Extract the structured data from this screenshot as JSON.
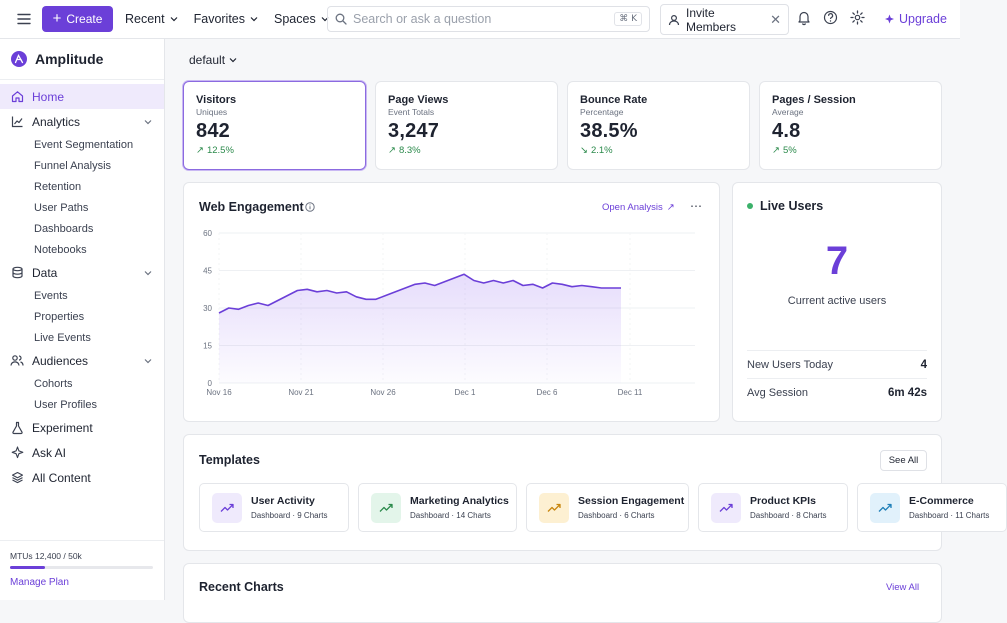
{
  "topbar": {
    "create_label": "Create",
    "menus": [
      "Recent",
      "Favorites",
      "Spaces"
    ],
    "search_placeholder": "Search or ask a question",
    "search_shortcut": "⌘ K",
    "invite_label": "Invite Members",
    "upgrade_label": "Upgrade"
  },
  "sidebar": {
    "brand": "Amplitude",
    "items": {
      "home": "Home",
      "analytics": "Analytics",
      "data": "Data",
      "audiences": "Audiences",
      "experiment": "Experiment",
      "ask_ai": "Ask AI",
      "all_content": "All Content"
    },
    "analytics_sub": [
      "Event Segmentation",
      "Funnel Analysis",
      "Retention",
      "User Paths",
      "Dashboards",
      "Notebooks"
    ],
    "data_sub": [
      "Events",
      "Properties",
      "Live Events"
    ],
    "audiences_sub": [
      "Cohorts",
      "User Profiles"
    ],
    "mtu_text": "MTUs 12,400 / 50k",
    "mtu_used_fraction": 0.248,
    "manage_plan": "Manage Plan"
  },
  "main": {
    "scope_label": "default",
    "kpis": [
      {
        "title": "Visitors",
        "subtitle": "Uniques",
        "value": "842",
        "delta": "12.5%"
      },
      {
        "title": "Page Views",
        "subtitle": "Event Totals",
        "value": "3,247",
        "delta": "8.3%"
      },
      {
        "title": "Bounce Rate",
        "subtitle": "Percentage",
        "value": "38.5%",
        "delta": "2.1%"
      },
      {
        "title": "Pages / Session",
        "subtitle": "Average",
        "value": "4.8",
        "delta": "5%"
      }
    ],
    "engagement": {
      "title": "Web Engagement",
      "open_analysis": "Open Analysis"
    },
    "live": {
      "title": "Live Users",
      "count": "7",
      "caption": "Current active users",
      "rows": [
        {
          "label": "New Users Today",
          "value": "4"
        },
        {
          "label": "Avg Session",
          "value": "6m 42s"
        }
      ]
    },
    "templates": {
      "title": "Templates",
      "see_all": "See All",
      "items": [
        {
          "name": "User Activity",
          "meta": "Dashboard · 9 Charts"
        },
        {
          "name": "Marketing Analytics",
          "meta": "Dashboard · 14 Charts"
        },
        {
          "name": "Session Engagement",
          "meta": "Dashboard · 6 Charts"
        },
        {
          "name": "Product KPIs",
          "meta": "Dashboard · 8 Charts"
        },
        {
          "name": "E-Commerce",
          "meta": "Dashboard · 11 Charts"
        }
      ]
    },
    "recent": {
      "title": "Recent Charts",
      "view_all": "View All"
    }
  },
  "colors": {
    "accent": "#6b3fd8",
    "positive": "#2b8a4b",
    "live": "#3bb16a"
  },
  "chart_data": {
    "type": "area",
    "ylim": [
      0,
      60
    ],
    "yticks": [
      "0",
      "15",
      "30",
      "45",
      "60"
    ],
    "xticks": [
      "Nov 16",
      "Nov 21",
      "Nov 26",
      "Dec 1",
      "Dec 6",
      "Dec 11"
    ],
    "x_start": "2024-11-16",
    "values": [
      28,
      30,
      29.5,
      31,
      32,
      31,
      33,
      35,
      37,
      37.5,
      36.5,
      37,
      36,
      36.5,
      34.5,
      33.5,
      33.5,
      35,
      36.5,
      38,
      39.5,
      40,
      39,
      40.5,
      42,
      43.5,
      41,
      40,
      41,
      40,
      41,
      39,
      39.5,
      38,
      40,
      39.5,
      38.5,
      39,
      38.5,
      38,
      38,
      38
    ]
  }
}
